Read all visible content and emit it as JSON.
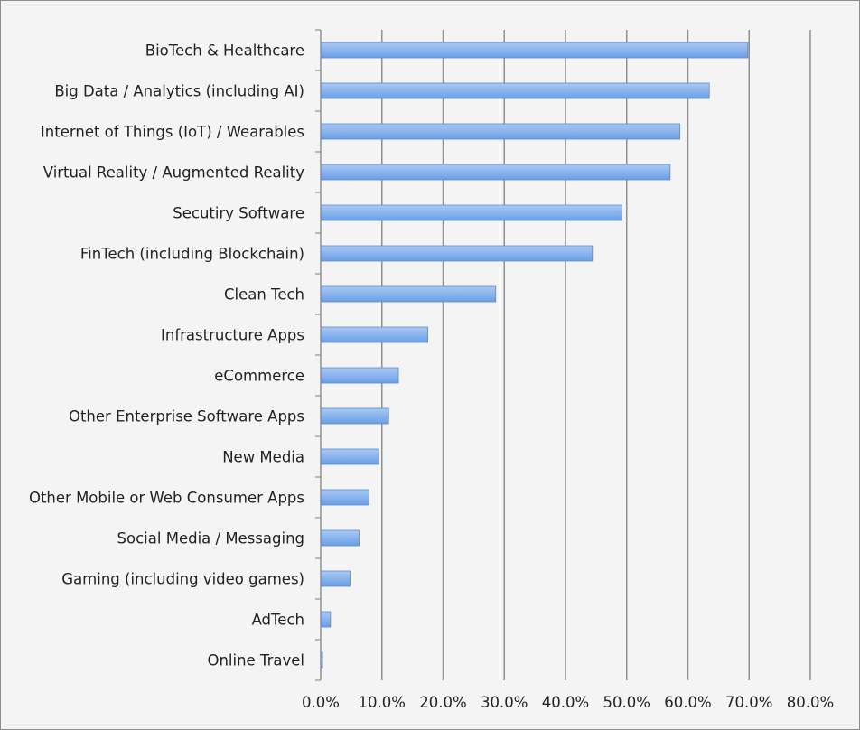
{
  "chart_data": {
    "type": "bar",
    "orientation": "horizontal",
    "title": "",
    "xlabel": "",
    "ylabel": "",
    "categories": [
      "BioTech & Healthcare",
      "Big Data / Analytics (including AI)",
      "Internet of Things (IoT) / Wearables",
      "Virtual Reality / Augmented Reality",
      "Secutiry Software",
      "FinTech (including Blockchain)",
      "Clean Tech",
      "Infrastructure Apps",
      "eCommerce",
      "Other Enterprise Software Apps",
      "New Media",
      "Other Mobile or Web Consumer Apps",
      "Social Media / Messaging",
      "Gaming (including video games)",
      "AdTech",
      "Online Travel"
    ],
    "values": [
      69.8,
      63.5,
      58.7,
      57.1,
      49.2,
      44.4,
      28.6,
      17.5,
      12.7,
      11.1,
      9.5,
      7.9,
      6.3,
      4.8,
      1.6,
      0.3
    ],
    "xlim": [
      0,
      80
    ],
    "xticks": [
      "0.0%",
      "10.0%",
      "20.0%",
      "30.0%",
      "40.0%",
      "50.0%",
      "60.0%",
      "70.0%",
      "80.0%"
    ],
    "grid": true,
    "legend": "none",
    "colors": {
      "bar_fill_top": "#a9c9f3",
      "bar_fill_bottom": "#6b9ee6",
      "bar_stroke": "#5a8ad0",
      "grid": "#8f8f8f",
      "background": "#f4f4f4"
    }
  }
}
